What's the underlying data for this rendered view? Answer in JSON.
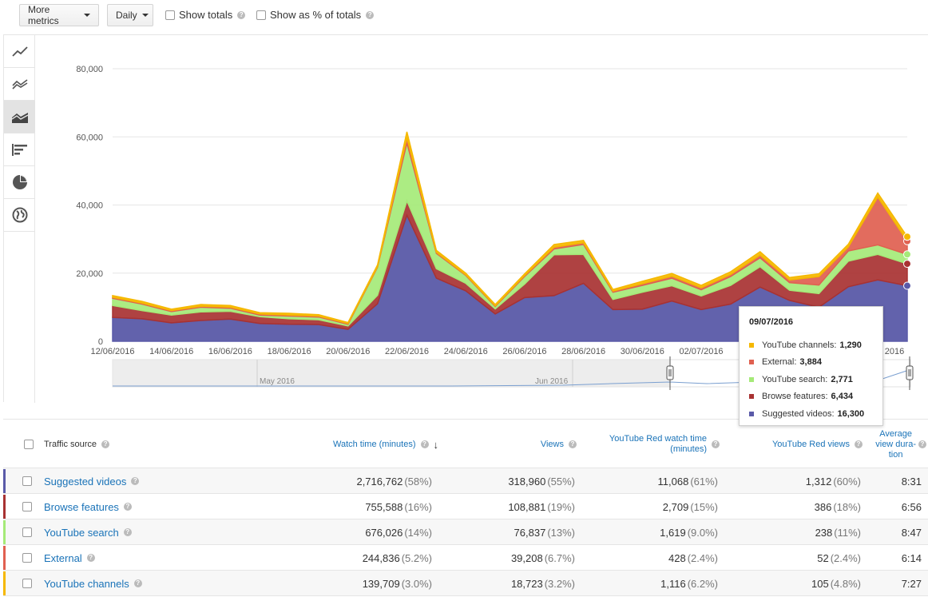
{
  "toolbar": {
    "more_metrics": "More metrics",
    "interval": "Daily",
    "show_totals": "Show totals",
    "show_pct_totals": "Show as % of totals"
  },
  "side_nav": [
    {
      "name": "line-chart-icon",
      "active": false
    },
    {
      "name": "multi-line-chart-icon",
      "active": false
    },
    {
      "name": "stacked-area-chart-icon",
      "active": true
    },
    {
      "name": "bar-chart-icon",
      "active": false
    },
    {
      "name": "pie-chart-icon",
      "active": false
    },
    {
      "name": "globe-map-icon",
      "active": false
    }
  ],
  "chart_data": {
    "type": "area",
    "stacked": true,
    "y_ticks": [
      "0",
      "20,000",
      "40,000",
      "60,000",
      "80,000"
    ],
    "ylim": [
      0,
      80000
    ],
    "x_tick_labels": [
      "12/06/2016",
      "14/06/2016",
      "16/06/2016",
      "18/06/2016",
      "20/06/2016",
      "22/06/2016",
      "24/06/2016",
      "26/06/2016",
      "28/06/2016",
      "30/06/2016",
      "02/07/2016",
      "0",
      "2016"
    ],
    "x_count": 28,
    "series": [
      {
        "name": "Suggested videos",
        "color": "#5a5aa8",
        "values": [
          7000,
          6600,
          5400,
          6100,
          6500,
          5200,
          5000,
          4900,
          3500,
          11000,
          37000,
          18500,
          14800,
          8000,
          12800,
          13400,
          17000,
          9300,
          9400,
          11800,
          9300,
          10900,
          15900,
          12000,
          10000,
          16000,
          18000,
          16300
        ]
      },
      {
        "name": "Browse features",
        "color": "#a83232",
        "values": [
          3500,
          2400,
          2300,
          2500,
          2300,
          2000,
          1600,
          1400,
          1000,
          2500,
          4200,
          2800,
          2200,
          1500,
          4000,
          12000,
          8500,
          3000,
          5000,
          4500,
          4000,
          5500,
          6000,
          3000,
          4000,
          7500,
          7500,
          6434
        ]
      },
      {
        "name": "YouTube search",
        "color": "#a5ea78",
        "values": [
          2100,
          1900,
          1000,
          1400,
          900,
          500,
          800,
          800,
          500,
          8200,
          17000,
          4500,
          2300,
          700,
          2200,
          1700,
          2900,
          2100,
          2000,
          2200,
          1800,
          2600,
          2600,
          2200,
          2500,
          3000,
          2800,
          2771
        ]
      },
      {
        "name": "External",
        "color": "#e06050",
        "values": [
          300,
          300,
          300,
          300,
          300,
          300,
          300,
          300,
          200,
          200,
          1500,
          300,
          200,
          200,
          300,
          500,
          500,
          300,
          500,
          600,
          600,
          600,
          800,
          800,
          2500,
          1200,
          14000,
          3884
        ]
      },
      {
        "name": "YouTube channels",
        "color": "#f5b800",
        "values": [
          500,
          500,
          400,
          500,
          500,
          400,
          500,
          400,
          300,
          500,
          1800,
          600,
          500,
          400,
          500,
          800,
          700,
          500,
          700,
          800,
          700,
          800,
          1000,
          700,
          800,
          800,
          1200,
          1290
        ]
      }
    ],
    "navigator_labels": [
      "May 2016",
      "Jun 2016"
    ]
  },
  "tooltip": {
    "date": "09/07/2016",
    "rows": [
      {
        "label": "YouTube channels:",
        "value": "1,290",
        "color": "#f5b800"
      },
      {
        "label": "External:",
        "value": "3,884",
        "color": "#e06050"
      },
      {
        "label": "YouTube search:",
        "value": "2,771",
        "color": "#a5ea78"
      },
      {
        "label": "Browse features:",
        "value": "6,434",
        "color": "#a83232"
      },
      {
        "label": "Suggested videos:",
        "value": "16,300",
        "color": "#5a5aa8"
      }
    ]
  },
  "table": {
    "headers": {
      "source": "Traffic source",
      "watch_time": "Watch time (minutes)",
      "views": "Views",
      "red_watch_1": "YouTube Red watch time",
      "red_watch_2": "(minutes)",
      "red_views": "YouTube Red views",
      "avg_1": "Average",
      "avg_2": "view dura-",
      "avg_3": "tion"
    },
    "rows": [
      {
        "color": "#5a5aa8",
        "source": "Suggested videos",
        "watch": "2,716,762",
        "watch_pct": "(58%)",
        "views": "318,960",
        "views_pct": "(55%)",
        "red_watch": "11,068",
        "red_watch_pct": "(61%)",
        "red_views": "1,312",
        "red_views_pct": "(60%)",
        "avg": "8:31"
      },
      {
        "color": "#a83232",
        "source": "Browse features",
        "watch": "755,588",
        "watch_pct": "(16%)",
        "views": "108,881",
        "views_pct": "(19%)",
        "red_watch": "2,709",
        "red_watch_pct": "(15%)",
        "red_views": "386",
        "red_views_pct": "(18%)",
        "avg": "6:56"
      },
      {
        "color": "#a5ea78",
        "source": "YouTube search",
        "watch": "676,026",
        "watch_pct": "(14%)",
        "views": "76,837",
        "views_pct": "(13%)",
        "red_watch": "1,619",
        "red_watch_pct": "(9.0%)",
        "red_views": "238",
        "red_views_pct": "(11%)",
        "avg": "8:47"
      },
      {
        "color": "#e06050",
        "source": "External",
        "watch": "244,836",
        "watch_pct": "(5.2%)",
        "views": "39,208",
        "views_pct": "(6.7%)",
        "red_watch": "428",
        "red_watch_pct": "(2.4%)",
        "red_views": "52",
        "red_views_pct": "(2.4%)",
        "avg": "6:14"
      },
      {
        "color": "#f5b800",
        "source": "YouTube channels",
        "watch": "139,709",
        "watch_pct": "(3.0%)",
        "views": "18,723",
        "views_pct": "(3.2%)",
        "red_watch": "1,116",
        "red_watch_pct": "(6.2%)",
        "red_views": "105",
        "red_views_pct": "(4.8%)",
        "avg": "7:27"
      }
    ]
  }
}
